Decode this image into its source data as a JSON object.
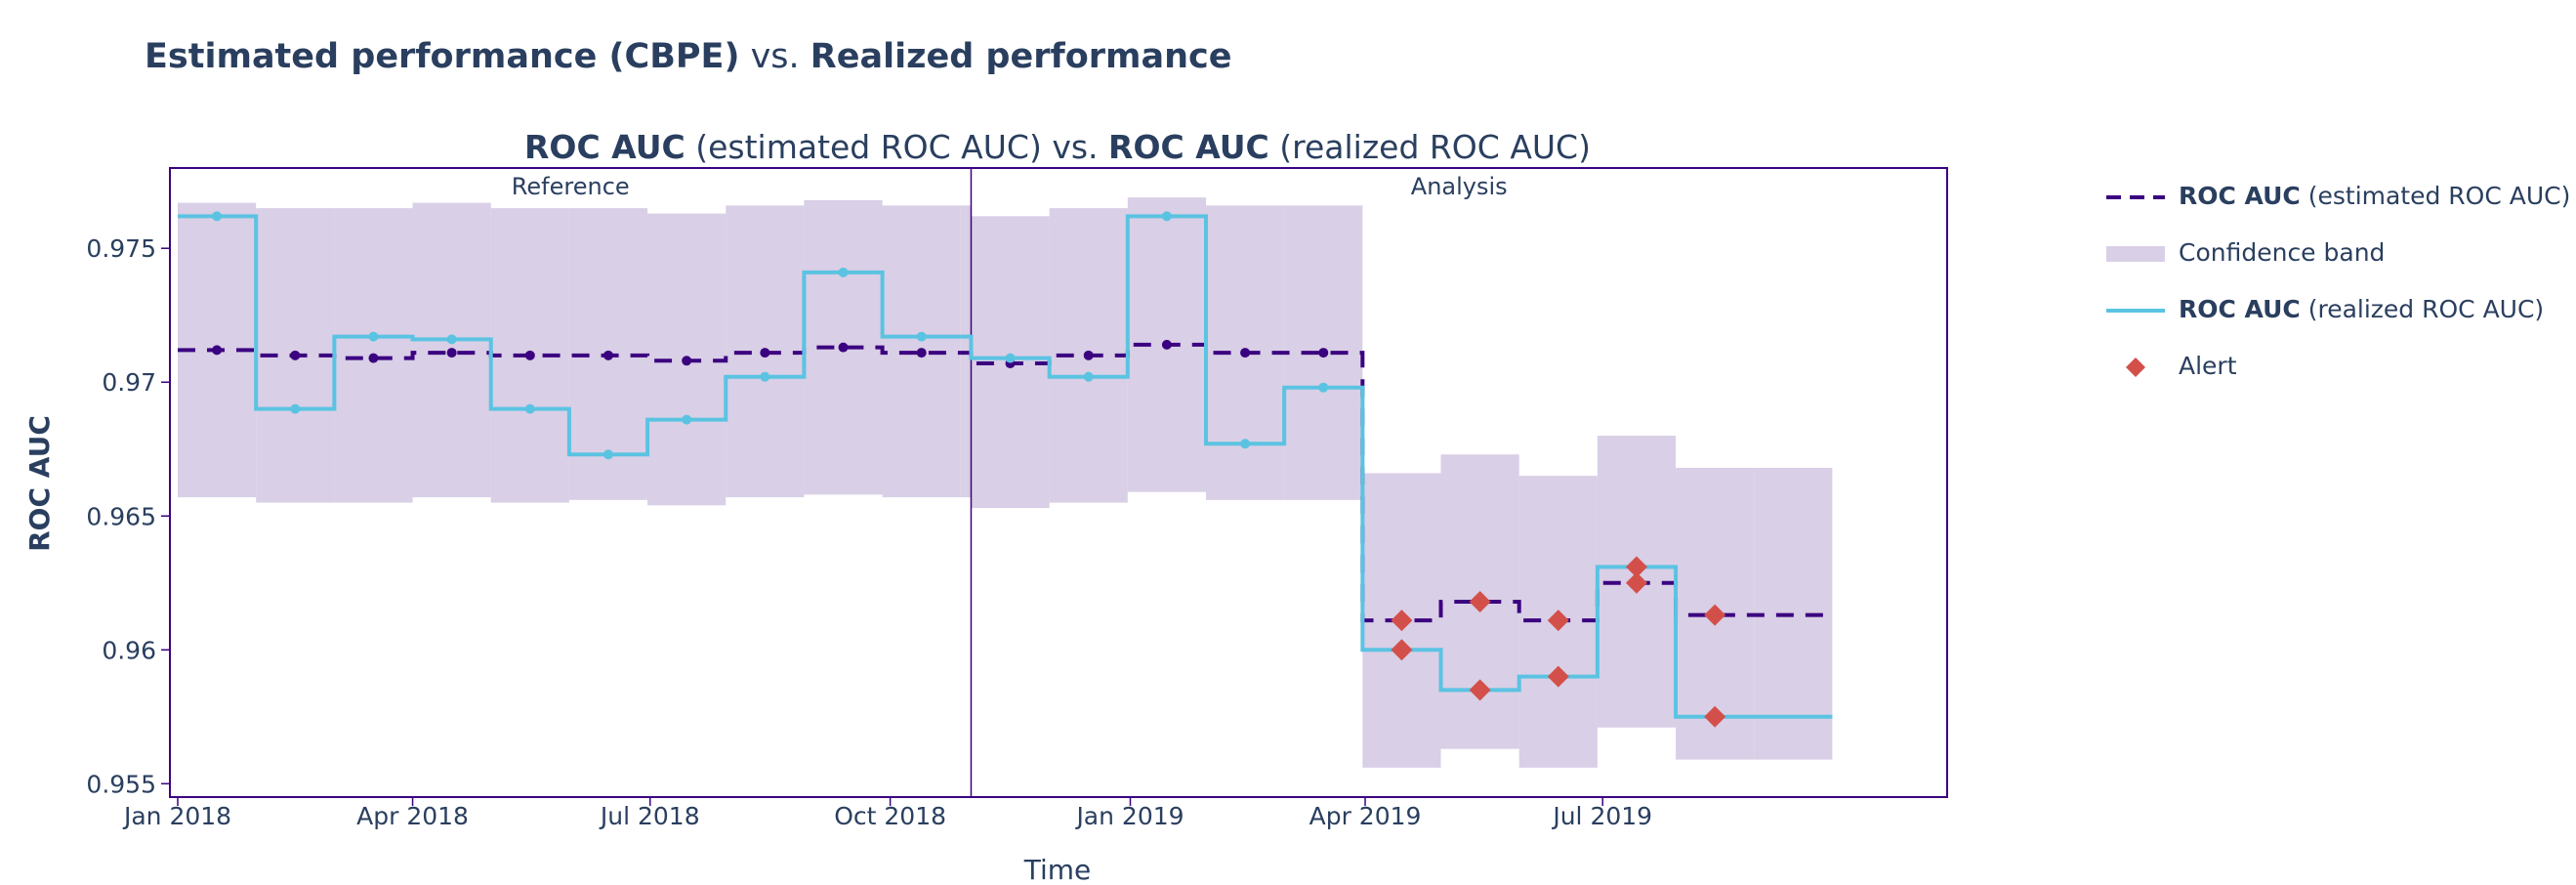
{
  "title": {
    "part1_bold": "Estimated performance (CBPE)",
    "part2": " vs. ",
    "part3_bold": "Realized performance"
  },
  "chart_data": {
    "type": "line",
    "subtitle": {
      "est_bold": "ROC AUC",
      "est_rest": " (estimated ROC AUC) vs. ",
      "real_bold": "ROC AUC",
      "real_rest": " (realized ROC AUC)"
    },
    "xlabel": "Time",
    "ylabel": "ROC AUC",
    "ylim": [
      0.9545,
      0.978
    ],
    "y_ticks": [
      0.955,
      0.96,
      0.965,
      0.97,
      0.975
    ],
    "y_tick_labels": [
      "0.955",
      "0.96",
      "0.965",
      "0.97",
      "0.975"
    ],
    "x_ticks": [
      "2018-01-01",
      "2018-04-01",
      "2018-07-01",
      "2018-10-01",
      "2019-01-01",
      "2019-04-01",
      "2019-07-01"
    ],
    "x_tick_labels": [
      "Jan 2018",
      "Apr 2018",
      "Jul 2018",
      "Oct 2018",
      "Jan 2019",
      "Apr 2019",
      "Jul 2019"
    ],
    "xlim": [
      "2017-12-29",
      "2019-11-10"
    ],
    "period_split": "2018-11-01",
    "periods": [
      "Reference",
      "Analysis"
    ],
    "chunk_starts": [
      "2018-01-01",
      "2018-01-31",
      "2018-03-02",
      "2018-04-01",
      "2018-05-01",
      "2018-05-31",
      "2018-06-30",
      "2018-07-30",
      "2018-08-29",
      "2018-09-28",
      "2018-10-28",
      "2018-11-01",
      "2018-12-01",
      "2018-12-31",
      "2019-01-30",
      "2019-03-01",
      "2019-03-31",
      "2019-04-30",
      "2019-05-30",
      "2019-06-29",
      "2019-07-29",
      "2019-08-28"
    ],
    "chunk_end": "2019-09-27",
    "estimated": [
      0.9712,
      0.971,
      0.9709,
      0.9711,
      0.971,
      0.971,
      0.9708,
      0.9711,
      0.9713,
      0.9711,
      0.9711,
      0.9707,
      0.971,
      0.9714,
      0.9711,
      0.9711,
      0.9611,
      0.9618,
      0.9611,
      0.9625,
      0.9613,
      0.9613
    ],
    "realized": [
      0.9762,
      0.969,
      0.9717,
      0.9716,
      0.969,
      0.9673,
      0.9686,
      0.9702,
      0.9741,
      0.9717,
      0.9717,
      0.9709,
      0.9702,
      0.9762,
      0.9677,
      0.9698,
      0.96,
      0.9585,
      0.959,
      0.9631,
      0.9575,
      0.9575
    ],
    "band_upper": [
      0.9767,
      0.9765,
      0.9765,
      0.9767,
      0.9765,
      0.9765,
      0.9763,
      0.9766,
      0.9768,
      0.9766,
      0.9766,
      0.9762,
      0.9765,
      0.9769,
      0.9766,
      0.9766,
      0.9666,
      0.9673,
      0.9665,
      0.968,
      0.9668,
      0.9668
    ],
    "band_lower": [
      0.9657,
      0.9655,
      0.9655,
      0.9657,
      0.9655,
      0.9656,
      0.9654,
      0.9657,
      0.9658,
      0.9657,
      0.9657,
      0.9653,
      0.9655,
      0.9659,
      0.9656,
      0.9656,
      0.9556,
      0.9563,
      0.9556,
      0.9571,
      0.9559,
      0.9559
    ],
    "est_marker_idx": [
      0,
      1,
      2,
      3,
      4,
      5,
      6,
      7,
      8,
      9,
      11,
      12,
      13,
      14,
      15,
      16,
      17,
      18,
      19,
      20
    ],
    "real_marker_idx": [
      0,
      1,
      2,
      3,
      4,
      5,
      6,
      7,
      8,
      9,
      11,
      12,
      13,
      14,
      15,
      16,
      17,
      18,
      19,
      20
    ],
    "alert_idx_estimated": [
      16,
      17,
      18,
      19,
      20
    ],
    "alert_idx_realized": [
      16,
      17,
      18,
      19,
      20
    ],
    "legend": [
      {
        "symbol": "dash-line",
        "bold": "ROC AUC",
        "rest": " (estimated ROC AUC)"
      },
      {
        "symbol": "band",
        "bold": "",
        "rest": "Confidence band"
      },
      {
        "symbol": "solid-line",
        "bold": "ROC AUC",
        "rest": " (realized ROC AUC)"
      },
      {
        "symbol": "diamond",
        "bold": "",
        "rest": "Alert"
      }
    ],
    "colors": {
      "estimated": "#3b0280",
      "realized": "#5bc3e2",
      "band": "#d9cfe6",
      "alert": "#d3504a",
      "frame": "#3b0280",
      "text": "#2a3f5f"
    }
  }
}
